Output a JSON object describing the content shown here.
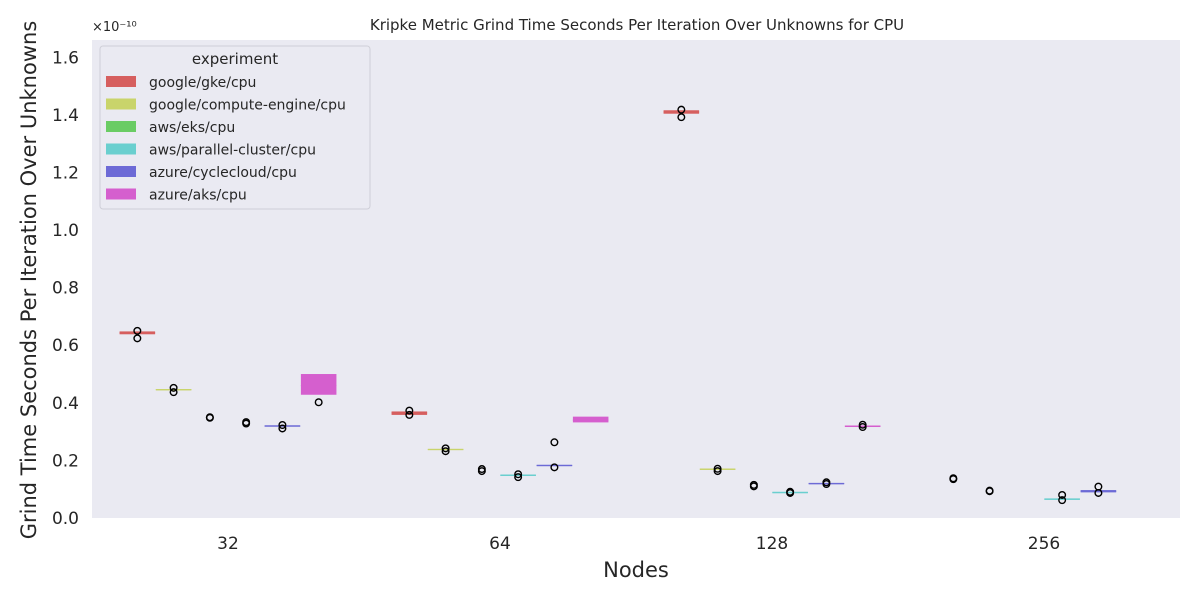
{
  "chart_data": {
    "type": "box",
    "title": "Kripke Metric Grind Time Seconds Per Iteration Over Unknowns for CPU",
    "xlabel": "Nodes",
    "ylabel": "Grind Time Seconds Per Iteration Over Unknowns",
    "y_scale_label": "×10⁻¹⁰",
    "y_unit_factor": 1e-10,
    "ylim": [
      0,
      1.66
    ],
    "yticks": [
      0.0,
      0.2,
      0.4,
      0.6,
      0.8,
      1.0,
      1.2,
      1.4,
      1.6
    ],
    "ytick_labels": [
      "0.0",
      "0.2",
      "0.4",
      "0.6",
      "0.8",
      "1.0",
      "1.2",
      "1.4",
      "1.6"
    ],
    "categories": [
      "32",
      "64",
      "128",
      "256"
    ],
    "grid": false,
    "background": "#eaeaf2",
    "legend": {
      "title": "experiment",
      "position": "top-left"
    },
    "series": [
      {
        "name": "google/gke/cpu",
        "color": "#d65f5f",
        "boxes": [
          {
            "category": "32",
            "q1": 0.638,
            "median": 0.643,
            "q3": 0.648,
            "outliers": [
              0.65,
              0.624
            ]
          },
          {
            "category": "64",
            "q1": 0.358,
            "median": 0.365,
            "q3": 0.37,
            "outliers": [
              0.373,
              0.358
            ]
          },
          {
            "category": "128",
            "q1": 1.404,
            "median": 1.41,
            "q3": 1.416,
            "outliers": [
              1.418,
              1.392
            ]
          },
          {
            "category": "256",
            "q1": null,
            "median": null,
            "q3": null,
            "outliers": [
              0.138,
              0.135
            ]
          }
        ]
      },
      {
        "name": "google/compute-engine/cpu",
        "color": "#c9d46b",
        "boxes": [
          {
            "category": "32",
            "q1": 0.443,
            "median": 0.446,
            "q3": 0.448,
            "outliers": [
              0.452,
              0.437
            ]
          },
          {
            "category": "64",
            "q1": 0.236,
            "median": 0.238,
            "q3": 0.24,
            "outliers": [
              0.242,
              0.232
            ]
          },
          {
            "category": "128",
            "q1": 0.168,
            "median": 0.17,
            "q3": 0.171,
            "outliers": [
              0.171,
              0.163
            ]
          },
          {
            "category": "256",
            "q1": null,
            "median": null,
            "q3": null,
            "outliers": [
              0.095,
              0.093
            ]
          }
        ]
      },
      {
        "name": "aws/eks/cpu",
        "color": "#6acc64",
        "boxes": [
          {
            "category": "32",
            "q1": null,
            "median": null,
            "q3": null,
            "outliers": [
              0.35,
              0.348
            ]
          },
          {
            "category": "64",
            "q1": null,
            "median": null,
            "q3": null,
            "outliers": [
              0.17,
              0.163
            ]
          },
          {
            "category": "128",
            "q1": null,
            "median": null,
            "q3": null,
            "outliers": [
              0.115,
              0.11
            ]
          },
          {
            "category": "256",
            "q1": null,
            "median": null,
            "q3": null,
            "outliers": []
          }
        ]
      },
      {
        "name": "aws/parallel-cluster/cpu",
        "color": "#6acfcf",
        "boxes": [
          {
            "category": "32",
            "q1": null,
            "median": null,
            "q3": null,
            "outliers": [
              0.333,
              0.328
            ]
          },
          {
            "category": "64",
            "q1": 0.148,
            "median": 0.149,
            "q3": 0.15,
            "outliers": [
              0.152,
              0.142
            ]
          },
          {
            "category": "128",
            "q1": 0.088,
            "median": 0.089,
            "q3": 0.09,
            "outliers": [
              0.091,
              0.087
            ]
          },
          {
            "category": "256",
            "q1": 0.065,
            "median": 0.066,
            "q3": 0.067,
            "outliers": [
              0.08,
              0.062
            ]
          }
        ]
      },
      {
        "name": "azure/cyclecloud/cpu",
        "color": "#6d6ad6",
        "boxes": [
          {
            "category": "32",
            "q1": 0.318,
            "median": 0.32,
            "q3": 0.321,
            "outliers": [
              0.323,
              0.311
            ]
          },
          {
            "category": "64",
            "q1": 0.182,
            "median": 0.183,
            "q3": 0.184,
            "outliers": [
              0.263,
              0.176
            ]
          },
          {
            "category": "128",
            "q1": 0.119,
            "median": 0.12,
            "q3": 0.121,
            "outliers": [
              0.124,
              0.118
            ]
          },
          {
            "category": "256",
            "q1": 0.089,
            "median": 0.093,
            "q3": 0.097,
            "outliers": [
              0.109,
              0.087
            ]
          }
        ]
      },
      {
        "name": "azure/aks/cpu",
        "color": "#d55fce",
        "boxes": [
          {
            "category": "32",
            "q1": 0.428,
            "median": 0.46,
            "q3": 0.5,
            "outliers": [
              0.402
            ]
          },
          {
            "category": "64",
            "q1": 0.332,
            "median": 0.34,
            "q3": 0.352,
            "outliers": []
          },
          {
            "category": "128",
            "q1": 0.316,
            "median": 0.319,
            "q3": 0.321,
            "outliers": [
              0.324,
              0.316
            ]
          },
          {
            "category": "256",
            "q1": null,
            "median": null,
            "q3": null,
            "outliers": []
          }
        ]
      }
    ]
  }
}
